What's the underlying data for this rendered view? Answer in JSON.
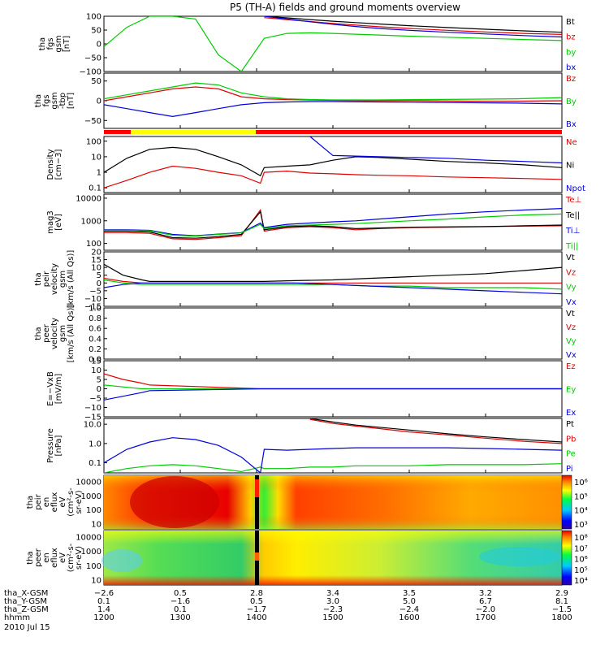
{
  "figure": {
    "title": "P5 (TH-A) fields and ground moments overview",
    "date_label": "2010 Jul 15"
  },
  "chart_data": [
    {
      "type": "line",
      "panel": "fgs_gsm",
      "ylabel": [
        "tha",
        "fgs",
        "gsm",
        "[nT]"
      ],
      "ylim": [
        -100,
        100
      ],
      "yticks": [
        "100",
        "50",
        "0",
        "−50",
        "−100"
      ],
      "yticks_val": [
        100,
        50,
        0,
        -50,
        -100
      ],
      "x": [
        1200,
        1230,
        1260,
        1290,
        1320,
        1350,
        1380,
        1410,
        1440,
        1470,
        1500,
        1530,
        1560,
        1600,
        1650,
        1700,
        1750,
        1800
      ],
      "series": [
        {
          "name": "Bt",
          "color": "#000000",
          "values": [
            null,
            null,
            null,
            null,
            null,
            null,
            null,
            100,
            94,
            88,
            82,
            77,
            72,
            66,
            59,
            53,
            47,
            42
          ]
        },
        {
          "name": "bz",
          "color": "#e00000",
          "values": [
            null,
            null,
            null,
            null,
            null,
            null,
            null,
            95,
            88,
            81,
            74,
            68,
            62,
            56,
            49,
            43,
            38,
            34
          ]
        },
        {
          "name": "by",
          "color": "#00cc00",
          "values": [
            -10,
            60,
            100,
            100,
            90,
            -40,
            -100,
            20,
            38,
            40,
            38,
            35,
            32,
            28,
            24,
            20,
            16,
            12
          ]
        },
        {
          "name": "bx",
          "color": "#0000dd",
          "values": [
            null,
            null,
            null,
            null,
            null,
            null,
            null,
            100,
            90,
            80,
            71,
            63,
            56,
            49,
            42,
            36,
            30,
            25
          ]
        }
      ]
    },
    {
      "type": "line",
      "panel": "fgs_gse_tbp",
      "ylabel": [
        "tha",
        "fgs",
        "gsm",
        "-tbp",
        "[nT]"
      ],
      "ylim": [
        -70,
        70
      ],
      "yticks": [
        "50",
        "0",
        "−50"
      ],
      "yticks_val": [
        50,
        0,
        -50
      ],
      "x": [
        1200,
        1230,
        1260,
        1290,
        1320,
        1350,
        1380,
        1410,
        1440,
        1470,
        1500,
        1560,
        1620,
        1680,
        1740,
        1800
      ],
      "series": [
        {
          "name": "Bz",
          "color": "#e00000",
          "values": [
            0,
            10,
            20,
            30,
            35,
            30,
            10,
            5,
            3,
            2,
            1,
            0,
            0,
            -1,
            -1,
            0
          ]
        },
        {
          "name": "By",
          "color": "#00cc00",
          "values": [
            5,
            15,
            25,
            35,
            45,
            40,
            20,
            10,
            5,
            3,
            2,
            2,
            3,
            4,
            5,
            8
          ]
        },
        {
          "name": "Bx",
          "color": "#0000dd",
          "values": [
            -10,
            -20,
            -30,
            -40,
            -30,
            -20,
            -10,
            -5,
            -3,
            -2,
            -2,
            -3,
            -4,
            -5,
            -6,
            -8
          ]
        }
      ]
    },
    {
      "type": "line",
      "panel": "density",
      "log": true,
      "ylabel": [
        "Density",
        "[cm−3]"
      ],
      "ylim": [
        0.05,
        200
      ],
      "yticks": [
        "100",
        "10",
        "1",
        "0.1"
      ],
      "yticks_val": [
        100,
        10,
        1,
        0.1
      ],
      "x": [
        1200,
        1230,
        1260,
        1290,
        1320,
        1350,
        1380,
        1405,
        1410,
        1440,
        1470,
        1500,
        1530,
        1560,
        1600,
        1650,
        1700,
        1750,
        1800
      ],
      "series": [
        {
          "name": "Ne",
          "color": "#e00000",
          "values": [
            0.1,
            0.3,
            1.0,
            2.5,
            1.8,
            1.0,
            0.6,
            0.2,
            1.0,
            1.2,
            0.9,
            0.8,
            0.7,
            0.65,
            0.6,
            0.5,
            0.45,
            0.4,
            0.35
          ]
        },
        {
          "name": "Ni",
          "color": "#000000",
          "values": [
            1.0,
            8,
            30,
            40,
            30,
            10,
            3,
            0.6,
            2,
            2.5,
            3,
            6,
            10,
            9,
            7,
            5,
            4,
            3,
            2
          ]
        },
        {
          "name": "Npot",
          "color": "#0000dd",
          "values": [
            null,
            null,
            null,
            null,
            null,
            null,
            null,
            null,
            null,
            null,
            200,
            12,
            11,
            10,
            9,
            8,
            6,
            5,
            4
          ]
        }
      ]
    },
    {
      "type": "line",
      "panel": "temperature",
      "log": true,
      "ylabel": [
        "mag3",
        "[eV]"
      ],
      "ylim": [
        50,
        15000
      ],
      "yticks": [
        "10000",
        "1000",
        "100"
      ],
      "yticks_val": [
        10000,
        1000,
        100
      ],
      "x": [
        1200,
        1230,
        1260,
        1290,
        1320,
        1350,
        1380,
        1405,
        1410,
        1440,
        1470,
        1500,
        1530,
        1560,
        1600,
        1650,
        1700,
        1750,
        1800
      ],
      "series": [
        {
          "name": "Te⊥",
          "color": "#e00000",
          "values": [
            300,
            300,
            280,
            160,
            150,
            180,
            220,
            3000,
            350,
            500,
            550,
            500,
            400,
            450,
            500,
            520,
            550,
            580,
            600
          ]
        },
        {
          "name": "Te||",
          "color": "#000000",
          "values": [
            350,
            350,
            320,
            180,
            170,
            200,
            250,
            2500,
            400,
            550,
            600,
            550,
            450,
            480,
            520,
            540,
            560,
            600,
            650
          ]
        },
        {
          "name": "Ti⊥",
          "color": "#0000dd",
          "values": [
            400,
            400,
            380,
            250,
            220,
            260,
            300,
            800,
            500,
            700,
            800,
            900,
            1000,
            1200,
            1500,
            2000,
            2500,
            3000,
            3500
          ]
        },
        {
          "name": "Ti||",
          "color": "#00cc00",
          "values": [
            380,
            380,
            360,
            230,
            210,
            250,
            290,
            700,
            450,
            600,
            650,
            700,
            750,
            850,
            1000,
            1200,
            1500,
            1800,
            2000
          ]
        }
      ]
    },
    {
      "type": "line",
      "panel": "velocity_peir",
      "ylabel": [
        "tha",
        "peir",
        "velocity",
        "gsm",
        "[km/s (All Qs)]"
      ],
      "ylim": [
        -15,
        20
      ],
      "yticks": [
        "20",
        "15",
        "10",
        "5",
        "0",
        "−5",
        "−10",
        "−15"
      ],
      "yticks_val": [
        20,
        15,
        10,
        5,
        0,
        -5,
        -10,
        -15
      ],
      "x": [
        1200,
        1225,
        1250,
        1260,
        1410,
        1450,
        1500,
        1550,
        1600,
        1650,
        1700,
        1750,
        1800
      ],
      "series": [
        {
          "name": "Vt",
          "color": "#000000",
          "values": [
            12,
            5,
            2,
            1,
            1,
            1.5,
            2,
            3,
            4,
            5,
            6,
            8,
            10
          ]
        },
        {
          "name": "Vz",
          "color": "#e00000",
          "values": [
            3,
            1,
            0,
            0,
            0,
            0,
            0,
            0,
            0,
            0,
            0,
            0,
            0
          ]
        },
        {
          "name": "Vy",
          "color": "#00cc00",
          "values": [
            2,
            0,
            -1,
            -1,
            -1,
            -1,
            -1,
            -2,
            -2,
            -3,
            -3,
            -3,
            -4
          ]
        },
        {
          "name": "Vx",
          "color": "#0000dd",
          "values": [
            -3,
            -1,
            0,
            0,
            0,
            0,
            -1,
            -2,
            -3,
            -4,
            -5,
            -6,
            -7
          ]
        }
      ],
      "gap": [
        1265,
        1405
      ]
    },
    {
      "type": "line",
      "panel": "velocity_peer",
      "ylabel": [
        "tha",
        "peer",
        "velocity",
        "gsm",
        "[km/s (All Qs)]"
      ],
      "ylim": [
        0,
        1
      ],
      "yticks": [
        "1.0",
        "0.8",
        "0.6",
        "0.4",
        "0.2",
        "0.0"
      ],
      "yticks_val": [
        1.0,
        0.8,
        0.6,
        0.4,
        0.2,
        0.0
      ],
      "x": [],
      "series": [
        {
          "name": "Vt",
          "color": "#000000",
          "values": []
        },
        {
          "name": "Vz",
          "color": "#e00000",
          "values": []
        },
        {
          "name": "Vy",
          "color": "#00cc00",
          "values": []
        },
        {
          "name": "Vx",
          "color": "#0000dd",
          "values": []
        }
      ]
    },
    {
      "type": "line",
      "panel": "efield",
      "ylabel": [
        "E=−VxB",
        "[mV/m]"
      ],
      "ylim": [
        -15,
        15
      ],
      "yticks": [
        "15",
        "10",
        "5",
        "0",
        "−5",
        "−10",
        "−15"
      ],
      "yticks_val": [
        15,
        10,
        5,
        0,
        -5,
        -10,
        -15
      ],
      "x": [
        1200,
        1225,
        1250,
        1260,
        1410,
        1500,
        1600,
        1700,
        1800
      ],
      "series": [
        {
          "name": "Ez",
          "color": "#e00000",
          "values": [
            8,
            5,
            3,
            2,
            0,
            0,
            0,
            0,
            0
          ]
        },
        {
          "name": "Ey",
          "color": "#00cc00",
          "values": [
            2,
            1,
            0,
            0,
            0,
            0,
            0,
            0,
            0
          ]
        },
        {
          "name": "Ex",
          "color": "#0000dd",
          "values": [
            -6,
            -4,
            -2,
            -1,
            0,
            0,
            0,
            0,
            0
          ]
        }
      ],
      "gap": [
        1265,
        1405
      ]
    },
    {
      "type": "line",
      "panel": "pressure",
      "log": true,
      "ylabel": [
        "Pressure",
        "[nPa]"
      ],
      "ylim": [
        0.03,
        20
      ],
      "yticks": [
        "10.0",
        "1.0",
        "0.1"
      ],
      "yticks_val": [
        10,
        1,
        0.1
      ],
      "x": [
        1200,
        1230,
        1260,
        1290,
        1320,
        1350,
        1380,
        1405,
        1410,
        1440,
        1470,
        1500,
        1530,
        1560,
        1600,
        1650,
        1700,
        1750,
        1800
      ],
      "series": [
        {
          "name": "Pt",
          "color": "#000000",
          "values": [
            null,
            null,
            null,
            null,
            null,
            null,
            null,
            null,
            null,
            null,
            20,
            13,
            9,
            7,
            5,
            3.2,
            2.2,
            1.6,
            1.2
          ]
        },
        {
          "name": "Pb",
          "color": "#e00000",
          "values": [
            null,
            null,
            null,
            null,
            null,
            null,
            null,
            null,
            null,
            null,
            18,
            11,
            8,
            6,
            4,
            2.8,
            1.9,
            1.3,
            1.0
          ]
        },
        {
          "name": "Pe",
          "color": "#00cc00",
          "values": [
            0.03,
            0.05,
            0.07,
            0.08,
            0.07,
            0.05,
            0.035,
            0.06,
            0.05,
            0.05,
            0.06,
            0.06,
            0.07,
            0.07,
            0.07,
            0.08,
            0.08,
            0.08,
            0.09
          ]
        },
        {
          "name": "Pi",
          "color": "#0000dd",
          "values": [
            0.1,
            0.5,
            1.2,
            2.0,
            1.6,
            0.8,
            0.2,
            0.03,
            0.5,
            0.45,
            0.5,
            0.55,
            0.6,
            0.6,
            0.6,
            0.6,
            0.55,
            0.5,
            0.45
          ]
        }
      ]
    },
    {
      "type": "heatmap",
      "panel": "peir_en_eflux",
      "ylabel": [
        "tha",
        "peir",
        "en",
        "eflux",
        "eV",
        "(cm²-s-",
        "sr-eV)"
      ],
      "yticks": [
        "10000",
        "1000",
        "100",
        "10"
      ],
      "colorbar_ticks": [
        "10⁶",
        "10⁵",
        "10⁴",
        "10³"
      ],
      "colorbar_ticks_val": [
        6,
        5,
        4,
        3
      ]
    },
    {
      "type": "heatmap",
      "panel": "peer_en_eflux",
      "ylabel": [
        "tha",
        "peer",
        "en",
        "eflux",
        "eV",
        "(cm²-s-",
        "sr-eV)"
      ],
      "yticks": [
        "10000",
        "1000",
        "100",
        "10"
      ],
      "colorbar_ticks": [
        "10⁸",
        "10⁷",
        "10⁶",
        "10⁵",
        "10⁴"
      ],
      "colorbar_ticks_val": [
        8,
        7,
        6,
        5,
        4
      ]
    }
  ],
  "bottom_axis": {
    "rows": [
      {
        "label": "tha_X-GSM",
        "values": [
          "−2.6",
          "0.5",
          "2.8",
          "3.4",
          "3.5",
          "3.2",
          "2.9"
        ]
      },
      {
        "label": "tha_Y-GSM",
        "values": [
          "0.1",
          "−1.6",
          "0.5",
          "3.0",
          "5.0",
          "6.7",
          "8.1"
        ]
      },
      {
        "label": "tha_Z-GSM",
        "values": [
          "1.4",
          "0.1",
          "−1.7",
          "−2.3",
          "−2.4",
          "−2.0",
          "−1.5"
        ]
      },
      {
        "label": "hhmm",
        "values": [
          "1200",
          "1300",
          "1400",
          "1500",
          "1600",
          "1700",
          "1800"
        ]
      }
    ]
  }
}
